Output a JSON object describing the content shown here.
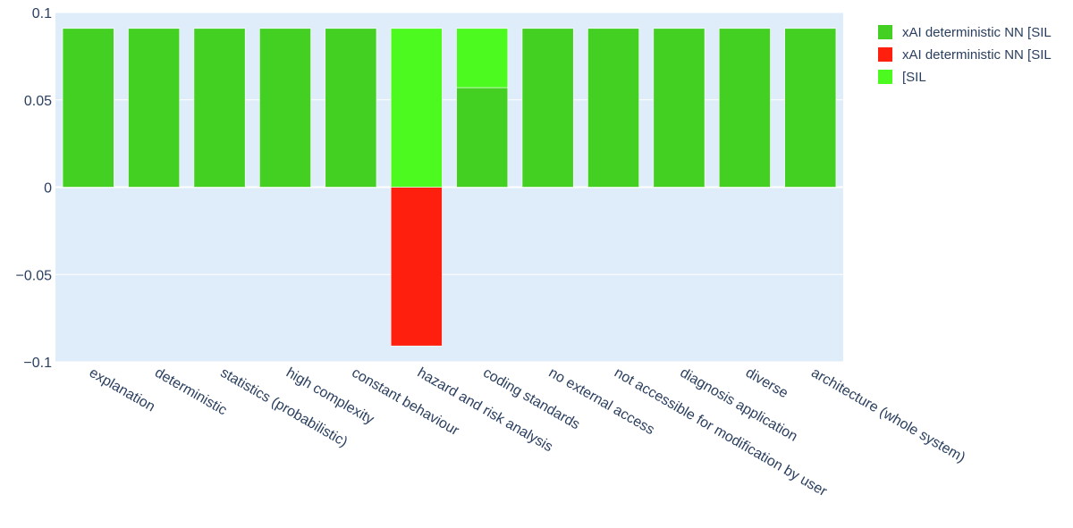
{
  "chart_data": {
    "type": "bar",
    "barmode": "relative",
    "categories": [
      "explanation",
      "deterministic",
      "statistics (probabilistic)",
      "high complexity",
      "constant behaviour",
      "hazard and risk analysis",
      "coding standards",
      "no external access",
      "not accessible for modification by user",
      "diagnosis application",
      "diverse",
      "architecture (whole system)"
    ],
    "series": [
      {
        "name": "xAI deterministic NN [SIL",
        "color": "#43d023",
        "values": [
          0.0909,
          0.0909,
          0.0909,
          0.0909,
          0.0909,
          0,
          0.057,
          0.0909,
          0.0909,
          0.0909,
          0.0909,
          0.0909
        ]
      },
      {
        "name": "xAI deterministic NN [SIL",
        "color": "#ff1f0f",
        "values": [
          0,
          0,
          0,
          0,
          0,
          -0.0909,
          0,
          0,
          0,
          0,
          0,
          0
        ]
      },
      {
        "name": "[SIL",
        "color": "#4dfa1f",
        "values": [
          0,
          0,
          0,
          0,
          0,
          0.0909,
          0.0339,
          0,
          0,
          0,
          0,
          0
        ]
      }
    ],
    "ylim": [
      -0.1,
      0.1
    ],
    "yticks": [
      0.1,
      0.05,
      0,
      -0.05,
      -0.1
    ],
    "ytick_labels": [
      "0.1",
      "0.05",
      "0",
      "−0.05",
      "−0.1"
    ],
    "grid": true,
    "legend_position": "top-right",
    "plot_bg": "#dfecf9"
  }
}
